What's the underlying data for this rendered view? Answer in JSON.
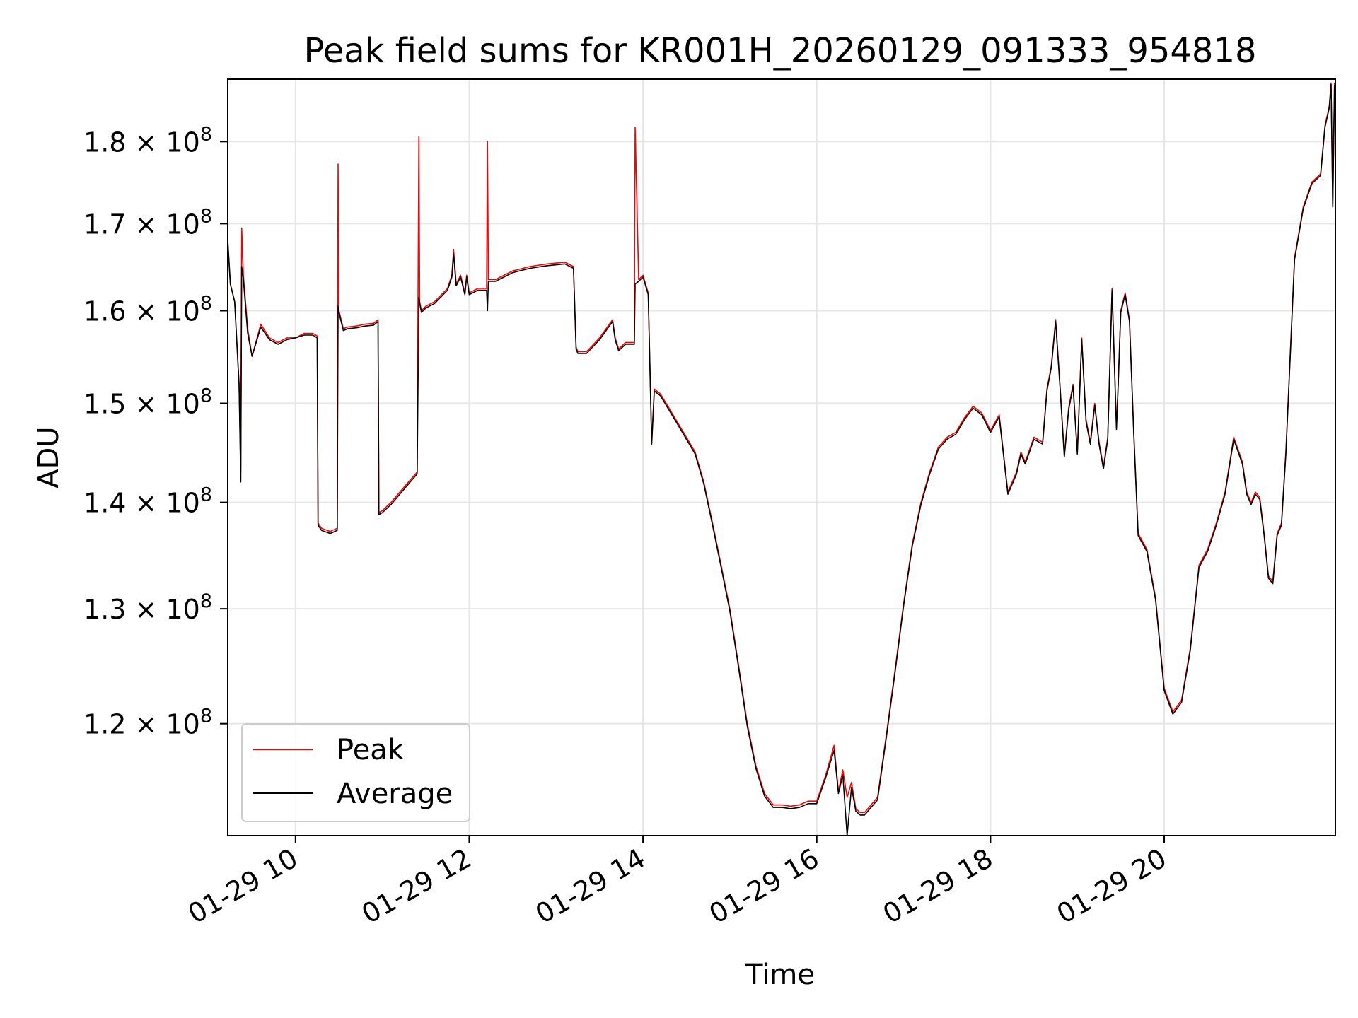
{
  "chart_data": {
    "type": "line",
    "title": "Peak field sums for KR001H_20260129_091333_954818",
    "xlabel": "Time",
    "ylabel": "ADU",
    "yscale": "log",
    "xlim": [
      9.22,
      21.97
    ],
    "ylim": [
      111000000,
      188000000
    ],
    "grid": true,
    "legend_position": "lower-left",
    "x_ticks": [
      {
        "value": 10,
        "label": "01-29 10"
      },
      {
        "value": 12,
        "label": "01-29 12"
      },
      {
        "value": 14,
        "label": "01-29 14"
      },
      {
        "value": 16,
        "label": "01-29 16"
      },
      {
        "value": 18,
        "label": "01-29 18"
      },
      {
        "value": 20,
        "label": "01-29 20"
      }
    ],
    "y_ticks": [
      {
        "value": 120000000,
        "mantissa": "1.2",
        "base": "10",
        "exp": "8"
      },
      {
        "value": 130000000,
        "mantissa": "1.3",
        "base": "10",
        "exp": "8"
      },
      {
        "value": 140000000,
        "mantissa": "1.4",
        "base": "10",
        "exp": "8"
      },
      {
        "value": 150000000,
        "mantissa": "1.5",
        "base": "10",
        "exp": "8"
      },
      {
        "value": 160000000,
        "mantissa": "1.6",
        "base": "10",
        "exp": "8"
      },
      {
        "value": 170000000,
        "mantissa": "1.7",
        "base": "10",
        "exp": "8"
      },
      {
        "value": 180000000,
        "mantissa": "1.8",
        "base": "10",
        "exp": "8"
      }
    ],
    "series": [
      {
        "name": "Peak",
        "color": "#ff0000",
        "x": [
          9.22,
          9.25,
          9.3,
          9.35,
          9.37,
          9.38,
          9.4,
          9.45,
          9.5,
          9.6,
          9.7,
          9.8,
          9.9,
          10.0,
          10.1,
          10.2,
          10.25,
          10.26,
          10.3,
          10.4,
          10.48,
          10.49,
          10.5,
          10.55,
          10.6,
          10.7,
          10.8,
          10.9,
          10.95,
          10.96,
          11.0,
          11.1,
          11.2,
          11.3,
          11.4,
          11.42,
          11.43,
          11.45,
          11.5,
          11.6,
          11.7,
          11.75,
          11.8,
          11.82,
          11.85,
          11.9,
          11.95,
          11.97,
          12.0,
          12.1,
          12.2,
          12.21,
          12.22,
          12.3,
          12.5,
          12.7,
          12.9,
          13.1,
          13.2,
          13.23,
          13.25,
          13.35,
          13.5,
          13.65,
          13.68,
          13.72,
          13.8,
          13.9,
          13.91,
          13.95,
          14.0,
          14.06,
          14.1,
          14.13,
          14.2,
          14.3,
          14.4,
          14.5,
          14.6,
          14.7,
          14.8,
          14.9,
          15.0,
          15.1,
          15.2,
          15.3,
          15.4,
          15.5,
          15.6,
          15.7,
          15.8,
          15.9,
          16.0,
          16.1,
          16.2,
          16.25,
          16.3,
          16.35,
          16.4,
          16.45,
          16.5,
          16.55,
          16.6,
          16.7,
          16.8,
          16.9,
          17.0,
          17.1,
          17.2,
          17.3,
          17.4,
          17.5,
          17.6,
          17.7,
          17.8,
          17.9,
          18.0,
          18.1,
          18.2,
          18.3,
          18.35,
          18.4,
          18.5,
          18.6,
          18.65,
          18.7,
          18.75,
          18.8,
          18.85,
          18.9,
          18.95,
          19.0,
          19.05,
          19.1,
          19.15,
          19.2,
          19.25,
          19.3,
          19.35,
          19.4,
          19.45,
          19.47,
          19.5,
          19.55,
          19.6,
          19.65,
          19.7,
          19.8,
          19.9,
          20.0,
          20.1,
          20.2,
          20.3,
          20.4,
          20.5,
          20.6,
          20.7,
          20.8,
          20.9,
          20.95,
          21.0,
          21.05,
          21.1,
          21.15,
          21.2,
          21.25,
          21.3,
          21.35,
          21.4,
          21.5,
          21.6,
          21.7,
          21.8,
          21.85,
          21.9,
          21.92,
          21.94,
          21.96
        ],
        "y": [
          168000000,
          163000000,
          161000000,
          152000000,
          143000000,
          169500000,
          164000000,
          158000000,
          155000000,
          158500000,
          157000000,
          156500000,
          157000000,
          157000000,
          157500000,
          157500000,
          157200000,
          138000000,
          137500000,
          137200000,
          137500000,
          177200000,
          160000000,
          158000000,
          158200000,
          158300000,
          158500000,
          158600000,
          159000000,
          139000000,
          139200000,
          140000000,
          141000000,
          142000000,
          143000000,
          180600000,
          161000000,
          160000000,
          160500000,
          161000000,
          162000000,
          162500000,
          164000000,
          167000000,
          163000000,
          164000000,
          162000000,
          164000000,
          162000000,
          162500000,
          162500000,
          180000000,
          163500000,
          163500000,
          164500000,
          165000000,
          165300000,
          165500000,
          165000000,
          156000000,
          155500000,
          155500000,
          157000000,
          159000000,
          157000000,
          155800000,
          156500000,
          156500000,
          181800000,
          163500000,
          164000000,
          162000000,
          146000000,
          151500000,
          151000000,
          149500000,
          148000000,
          146500000,
          145000000,
          142000000,
          138000000,
          134000000,
          130000000,
          125000000,
          120000000,
          116500000,
          114300000,
          113400000,
          113400000,
          113300000,
          113400000,
          113700000,
          113700000,
          115700000,
          118200000,
          114500000,
          116200000,
          114000000,
          115200000,
          113100000,
          112800000,
          112800000,
          113200000,
          114000000,
          119000000,
          124500000,
          130500000,
          136000000,
          140000000,
          143000000,
          145500000,
          146500000,
          147000000,
          148500000,
          149700000,
          149000000,
          147200000,
          148800000,
          141000000,
          143000000,
          145000000,
          144000000,
          146500000,
          146000000,
          151500000,
          154000000,
          159000000,
          152000000,
          144700000,
          149500000,
          152000000,
          145000000,
          157000000,
          148300000,
          146000000,
          150000000,
          146000000,
          143500000,
          146500000,
          162500000,
          147500000,
          152000000,
          160000000,
          162000000,
          159000000,
          147000000,
          137000000,
          135500000,
          131000000,
          123000000,
          121000000,
          122000000,
          126500000,
          134000000,
          135500000,
          138000000,
          141000000,
          146500000,
          144000000,
          141000000,
          140000000,
          141000000,
          140500000,
          137000000,
          133000000,
          132500000,
          137000000,
          138000000,
          145000000,
          166000000,
          172000000,
          175000000,
          176000000,
          182000000,
          184500000,
          187500000,
          172000000,
          187500000
        ]
      },
      {
        "name": "Average",
        "color": "#000000",
        "x": [
          9.22,
          9.25,
          9.3,
          9.35,
          9.37,
          9.38,
          9.4,
          9.45,
          9.5,
          9.6,
          9.7,
          9.8,
          9.9,
          10.0,
          10.1,
          10.2,
          10.25,
          10.26,
          10.3,
          10.4,
          10.48,
          10.49,
          10.5,
          10.55,
          10.6,
          10.7,
          10.8,
          10.9,
          10.95,
          10.96,
          11.0,
          11.1,
          11.2,
          11.3,
          11.4,
          11.42,
          11.43,
          11.45,
          11.5,
          11.6,
          11.7,
          11.75,
          11.8,
          11.82,
          11.85,
          11.9,
          11.95,
          11.97,
          12.0,
          12.1,
          12.2,
          12.21,
          12.22,
          12.3,
          12.5,
          12.7,
          12.9,
          13.1,
          13.2,
          13.23,
          13.25,
          13.35,
          13.5,
          13.65,
          13.68,
          13.72,
          13.8,
          13.9,
          13.91,
          13.95,
          14.0,
          14.06,
          14.1,
          14.13,
          14.2,
          14.3,
          14.4,
          14.5,
          14.6,
          14.7,
          14.8,
          14.9,
          15.0,
          15.1,
          15.2,
          15.3,
          15.4,
          15.5,
          15.6,
          15.7,
          15.8,
          15.9,
          16.0,
          16.1,
          16.2,
          16.25,
          16.3,
          16.35,
          16.4,
          16.45,
          16.5,
          16.55,
          16.6,
          16.7,
          16.8,
          16.9,
          17.0,
          17.1,
          17.2,
          17.3,
          17.4,
          17.5,
          17.6,
          17.7,
          17.8,
          17.9,
          18.0,
          18.1,
          18.2,
          18.3,
          18.35,
          18.4,
          18.5,
          18.6,
          18.65,
          18.7,
          18.75,
          18.8,
          18.85,
          18.9,
          18.95,
          19.0,
          19.05,
          19.1,
          19.15,
          19.2,
          19.25,
          19.3,
          19.35,
          19.4,
          19.45,
          19.47,
          19.5,
          19.55,
          19.6,
          19.65,
          19.7,
          19.8,
          19.9,
          20.0,
          20.1,
          20.2,
          20.3,
          20.4,
          20.5,
          20.6,
          20.7,
          20.8,
          20.9,
          20.95,
          21.0,
          21.05,
          21.1,
          21.15,
          21.2,
          21.25,
          21.3,
          21.35,
          21.4,
          21.5,
          21.6,
          21.7,
          21.8,
          21.85,
          21.9,
          21.92,
          21.94,
          21.96
        ],
        "y": [
          168000000,
          163000000,
          161000000,
          152000000,
          142000000,
          165000000,
          163500000,
          157500000,
          155000000,
          158200000,
          156800000,
          156300000,
          156800000,
          157000000,
          157300000,
          157300000,
          157000000,
          137800000,
          137300000,
          137000000,
          137300000,
          160500000,
          159800000,
          157800000,
          158000000,
          158100000,
          158300000,
          158400000,
          158800000,
          138800000,
          139000000,
          139800000,
          140800000,
          141800000,
          142800000,
          161500000,
          160800000,
          159800000,
          160300000,
          160800000,
          161800000,
          162300000,
          163800000,
          166500000,
          162800000,
          163800000,
          161800000,
          163800000,
          161800000,
          162300000,
          162300000,
          160000000,
          163300000,
          163300000,
          164300000,
          164800000,
          165100000,
          165300000,
          164800000,
          155800000,
          155300000,
          155300000,
          156800000,
          158800000,
          156800000,
          155600000,
          156300000,
          156300000,
          163000000,
          163300000,
          163800000,
          161800000,
          145800000,
          151300000,
          150800000,
          149300000,
          147800000,
          146300000,
          144800000,
          141800000,
          137800000,
          133800000,
          129800000,
          124800000,
          119800000,
          116300000,
          114100000,
          113200000,
          113200000,
          113100000,
          113200000,
          113500000,
          113500000,
          115500000,
          117800000,
          114300000,
          115800000,
          111000000,
          114800000,
          112900000,
          112600000,
          112600000,
          113000000,
          113800000,
          118800000,
          124300000,
          130300000,
          135800000,
          139800000,
          142800000,
          145300000,
          146300000,
          146800000,
          148300000,
          149500000,
          148800000,
          147000000,
          148600000,
          140800000,
          142800000,
          144800000,
          143800000,
          146300000,
          145800000,
          151300000,
          153800000,
          158800000,
          151800000,
          144500000,
          149300000,
          151800000,
          144800000,
          156800000,
          148100000,
          145800000,
          149800000,
          145800000,
          143300000,
          146300000,
          162300000,
          147300000,
          151800000,
          159800000,
          161800000,
          158800000,
          146800000,
          136800000,
          135300000,
          130800000,
          122800000,
          120800000,
          121800000,
          126300000,
          133800000,
          135300000,
          137800000,
          140800000,
          146300000,
          143800000,
          140800000,
          139800000,
          140800000,
          140300000,
          136800000,
          132800000,
          132300000,
          136800000,
          137800000,
          144800000,
          165800000,
          171800000,
          174800000,
          175800000,
          181800000,
          184300000,
          187300000,
          172000000,
          187300000
        ]
      }
    ]
  }
}
